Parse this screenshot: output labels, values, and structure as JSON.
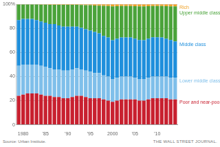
{
  "chart_data": {
    "type": "bar",
    "stacked": true,
    "grid": true,
    "legend": "right",
    "source": "Source: Urban Institute.",
    "credit": "THE WALL STREET JOURNAL.",
    "categories": [
      null,
      "1980",
      null,
      null,
      null,
      null,
      "’85",
      null,
      null,
      null,
      null,
      "’90",
      null,
      null,
      null,
      null,
      "’95",
      null,
      null,
      null,
      null,
      "2000",
      null,
      null,
      null,
      null,
      "’05",
      null,
      null,
      null,
      null,
      "’10",
      null,
      null,
      null,
      null
    ],
    "ylim": [
      0,
      100
    ],
    "yticks": [
      0,
      20,
      40,
      60,
      80,
      {
        "value": 100,
        "label": "100%"
      }
    ],
    "series": [
      {
        "name": "Poor and near-poor",
        "color": "#c8202f",
        "values": [
          24,
          25,
          26,
          26,
          26,
          25,
          24,
          24,
          23,
          23,
          22,
          22,
          23,
          24,
          24,
          23,
          22,
          22,
          22,
          21,
          20,
          19,
          20,
          21,
          21,
          21,
          21,
          20,
          20,
          21,
          22,
          22,
          22,
          22,
          21,
          21
        ]
      },
      {
        "name": "Lower middle class",
        "color": "#7fbfea",
        "values": [
          25,
          25,
          24,
          24,
          24,
          24,
          24,
          23,
          23,
          23,
          23,
          23,
          23,
          23,
          22,
          22,
          22,
          21,
          21,
          20,
          20,
          19,
          19,
          19,
          19,
          19,
          18,
          18,
          18,
          18,
          18,
          18,
          18,
          18,
          18,
          18
        ]
      },
      {
        "name": "Middle class",
        "color": "#1f8fdc",
        "values": [
          37.9,
          37.9,
          37.9,
          37.8,
          36.8,
          36.7,
          36.7,
          36.6,
          37.6,
          36.5,
          36.5,
          36.5,
          35.5,
          34.5,
          34.4,
          34.3,
          34.2,
          34,
          32.9,
          32.7,
          32.5,
          32.2,
          32.4,
          32.5,
          32.5,
          32.5,
          32.4,
          32.3,
          32.2,
          32.4,
          32.6,
          32.6,
          32.5,
          31.4,
          31.3,
          30.2
        ]
      },
      {
        "name": "Upper middle class",
        "color": "#4aa33a",
        "values": [
          13,
          12,
          12,
          12,
          13,
          14,
          15,
          16,
          16,
          17,
          18,
          18,
          18,
          18,
          19,
          20,
          21,
          22,
          23,
          25,
          26,
          28,
          27,
          26,
          26,
          26,
          27,
          28,
          28,
          27,
          26,
          26,
          26,
          27,
          28,
          29
        ]
      },
      {
        "name": "Rich",
        "color": "#f0a32a",
        "values": [
          0.1,
          0.1,
          0.1,
          0.2,
          0.2,
          0.3,
          0.3,
          0.4,
          0.4,
          0.5,
          0.5,
          0.5,
          0.5,
          0.5,
          0.6,
          0.7,
          0.8,
          1,
          1.1,
          1.3,
          1.5,
          1.8,
          1.6,
          1.5,
          1.5,
          1.5,
          1.6,
          1.7,
          1.8,
          1.6,
          1.4,
          1.4,
          1.5,
          1.6,
          1.7,
          1.8
        ]
      }
    ]
  }
}
